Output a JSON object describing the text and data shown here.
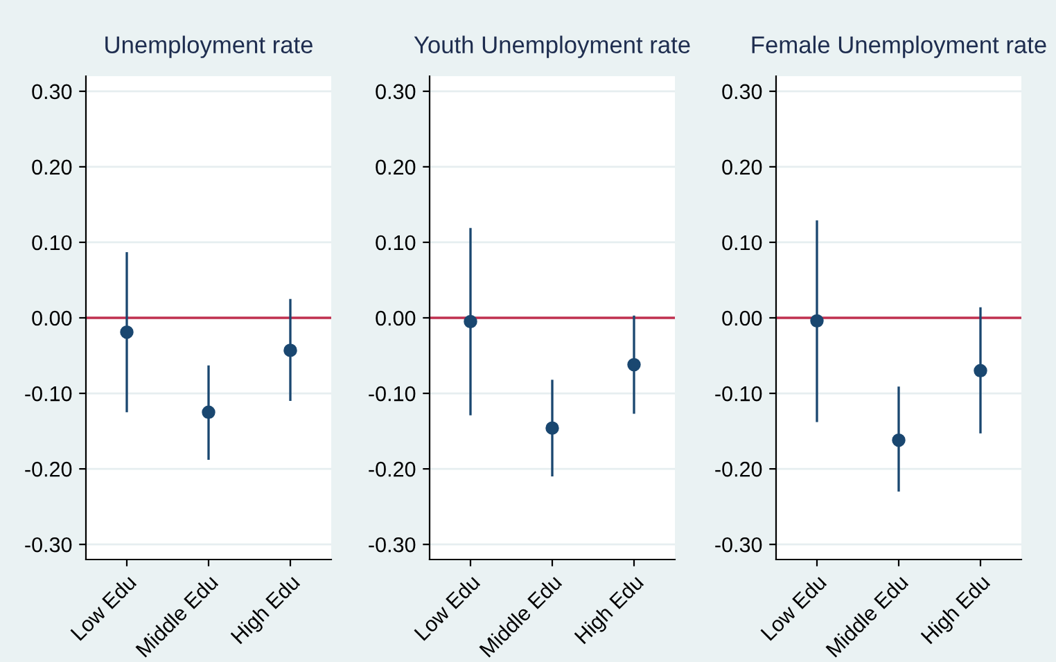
{
  "chart_data": [
    {
      "type": "scatter",
      "title": "Unemployment rate",
      "categories": [
        "Low Edu",
        "Middle Edu",
        "High Edu"
      ],
      "values": [
        -0.019,
        -0.125,
        -0.043
      ],
      "errors": [
        [
          -0.125,
          0.087
        ],
        [
          -0.188,
          -0.063
        ],
        [
          -0.11,
          0.025
        ]
      ],
      "color": "#1a4770",
      "marker": "circle",
      "ylim": [
        -0.32,
        0.32
      ],
      "yticks": [
        {
          "value": -0.3,
          "label": "-0.30"
        },
        {
          "value": -0.2,
          "label": "-0.20"
        },
        {
          "value": -0.1,
          "label": "-0.10"
        },
        {
          "value": 0,
          "label": "0.00"
        },
        {
          "value": 0.1,
          "label": "0.10"
        },
        {
          "value": 0.2,
          "label": "0.20"
        },
        {
          "value": 0.3,
          "label": "0.30"
        }
      ],
      "grid": "y",
      "ref_lines": [
        {
          "axis": "y",
          "value": 0,
          "color": "#c0304f"
        }
      ]
    },
    {
      "type": "scatter",
      "title": "Youth Unemployment rate",
      "categories": [
        "Low Edu",
        "Middle Edu",
        "High Edu"
      ],
      "values": [
        -0.005,
        -0.146,
        -0.062
      ],
      "errors": [
        [
          -0.129,
          0.119
        ],
        [
          -0.21,
          -0.082
        ],
        [
          -0.127,
          0.003
        ]
      ],
      "color": "#1a4770",
      "marker": "circle",
      "ylim": [
        -0.32,
        0.32
      ],
      "yticks": [
        {
          "value": -0.3,
          "label": "-0.30"
        },
        {
          "value": -0.2,
          "label": "-0.20"
        },
        {
          "value": -0.1,
          "label": "-0.10"
        },
        {
          "value": 0,
          "label": "0.00"
        },
        {
          "value": 0.1,
          "label": "0.10"
        },
        {
          "value": 0.2,
          "label": "0.20"
        },
        {
          "value": 0.3,
          "label": "0.30"
        }
      ],
      "grid": "y",
      "ref_lines": [
        {
          "axis": "y",
          "value": 0,
          "color": "#c0304f"
        }
      ]
    },
    {
      "type": "scatter",
      "title": "Female Unemployment rate",
      "categories": [
        "Low Edu",
        "Middle Edu",
        "High Edu"
      ],
      "values": [
        -0.004,
        -0.162,
        -0.07
      ],
      "errors": [
        [
          -0.138,
          0.129
        ],
        [
          -0.23,
          -0.091
        ],
        [
          -0.153,
          0.014
        ]
      ],
      "color": "#1a4770",
      "marker": "circle",
      "ylim": [
        -0.32,
        0.32
      ],
      "yticks": [
        {
          "value": -0.3,
          "label": "-0.30"
        },
        {
          "value": -0.2,
          "label": "-0.20"
        },
        {
          "value": -0.1,
          "label": "-0.10"
        },
        {
          "value": 0,
          "label": "0.00"
        },
        {
          "value": 0.1,
          "label": "0.10"
        },
        {
          "value": 0.2,
          "label": "0.20"
        },
        {
          "value": 0.3,
          "label": "0.30"
        }
      ],
      "grid": "y",
      "ref_lines": [
        {
          "axis": "y",
          "value": 0,
          "color": "#c0304f"
        }
      ]
    }
  ]
}
